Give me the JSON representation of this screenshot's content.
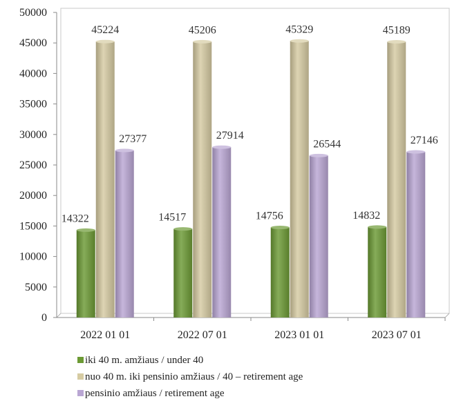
{
  "chart_data": {
    "type": "bar",
    "categories": [
      "2022 01 01",
      "2022 07 01",
      "2023 01 01",
      "2023 07 01"
    ],
    "series": [
      {
        "name": "iki 40 m. amžiaus / under 40",
        "color": "#6c9a34",
        "values": [
          14322,
          14517,
          14756,
          14832
        ]
      },
      {
        "name": "nuo 40 m. iki pensinio amžiaus / 40 – retirement age",
        "color": "#d6cba2",
        "values": [
          45224,
          45206,
          45329,
          45189
        ]
      },
      {
        "name": "pensinio amžiaus / retirement age",
        "color": "#b9a6d3",
        "values": [
          27377,
          27914,
          26544,
          27146
        ]
      }
    ],
    "ylim": [
      0,
      50000
    ],
    "yticks": [
      0,
      5000,
      10000,
      15000,
      20000,
      25000,
      30000,
      35000,
      40000,
      45000,
      50000
    ],
    "grid": false,
    "legend_position": "bottom",
    "data_labels": true,
    "style": "3d-cylinder"
  }
}
